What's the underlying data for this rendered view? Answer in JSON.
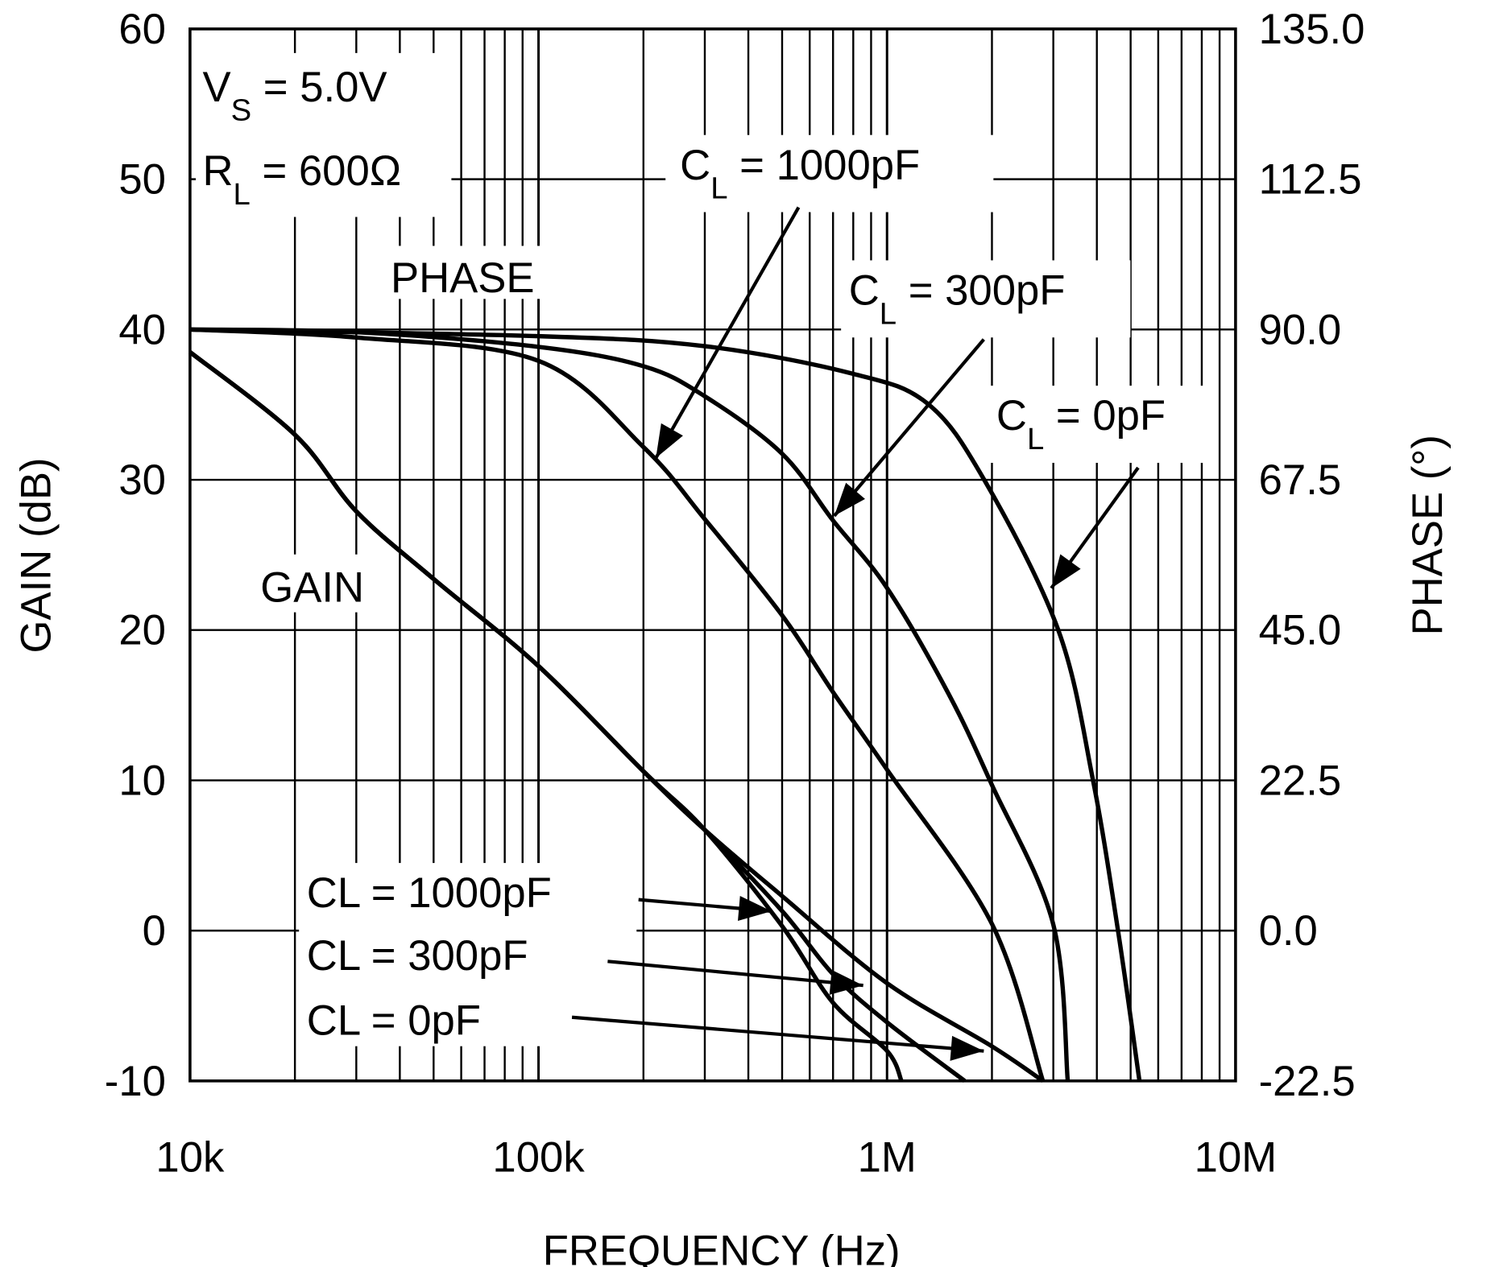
{
  "chart_data": {
    "type": "line",
    "xlabel": "FREQUENCY (Hz)",
    "ylabel": "GAIN (dB)",
    "y2label": "PHASE (°)",
    "xscale": "log",
    "xlim": [
      10000,
      10000000
    ],
    "ylim": [
      -10,
      60
    ],
    "y2lim": [
      -22.5,
      135
    ],
    "grid": true,
    "x_ticks": [
      {
        "value": 10000,
        "label": "10k"
      },
      {
        "value": 100000,
        "label": "100k"
      },
      {
        "value": 1000000,
        "label": "1M"
      },
      {
        "value": 10000000,
        "label": "10M"
      }
    ],
    "y_ticks": [
      "60",
      "50",
      "40",
      "30",
      "20",
      "10",
      "0",
      "-10"
    ],
    "y2_ticks": [
      "135.0",
      "112.5",
      "90.0",
      "67.5",
      "45.0",
      "22.5",
      "0.0",
      "-22.5"
    ],
    "conditions": {
      "vs": {
        "main": "V",
        "sub": "S",
        "rest": " = 5.0V"
      },
      "rl": {
        "main": "R",
        "sub": "L",
        "rest": " = 600Ω"
      }
    },
    "region_labels": {
      "phase": "PHASE",
      "gain": "GAIN"
    },
    "series": [
      {
        "name": "CL = 1000pF",
        "axis": "gain",
        "x": [
          10000,
          20000,
          30000,
          50000,
          100000,
          200000,
          300000,
          500000,
          700000,
          1000000,
          1100000
        ],
        "y": [
          38.5,
          33,
          27.9,
          23.4,
          17.6,
          10.6,
          6.7,
          0.3,
          -4.8,
          -8,
          -10
        ]
      },
      {
        "name": "CL = 300pF",
        "axis": "gain",
        "x": [
          10000,
          20000,
          30000,
          50000,
          100000,
          200000,
          300000,
          500000,
          700000,
          1000000,
          1670000
        ],
        "y": [
          38.5,
          33,
          27.9,
          23.4,
          17.6,
          10.6,
          6.7,
          1.3,
          -2.9,
          -6.1,
          -10
        ]
      },
      {
        "name": "CL = 0pF",
        "axis": "gain",
        "x": [
          10000,
          20000,
          30000,
          50000,
          100000,
          200000,
          300000,
          500000,
          1000000,
          2000000,
          2800000
        ],
        "y": [
          38.5,
          33,
          27.9,
          23.4,
          17.6,
          10.6,
          6.7,
          2.3,
          -3.5,
          -7.7,
          -10
        ]
      },
      {
        "name": "CL = 1000pF",
        "axis": "phase",
        "x": [
          10000,
          30000,
          100000,
          200000,
          300000,
          500000,
          700000,
          1000000,
          2000000,
          2800000
        ],
        "y": [
          90,
          88.8,
          85.3,
          72.4,
          61.6,
          47.2,
          35.7,
          24.1,
          1,
          -22.5
        ]
      },
      {
        "name": "CL = 300pF",
        "axis": "phase",
        "x": [
          10000,
          30000,
          100000,
          200000,
          300000,
          500000,
          700000,
          1000000,
          1500000,
          2000000,
          3000000,
          3300000
        ],
        "y": [
          90,
          89.6,
          87.4,
          84.5,
          80,
          71.4,
          61.4,
          51.3,
          35.5,
          21.8,
          0.9,
          -22.5
        ]
      },
      {
        "name": "CL = 0pF",
        "axis": "phase",
        "x": [
          10000,
          100000,
          300000,
          780000,
          1300000,
          1900000,
          3100000,
          3900000,
          4600000,
          5300000
        ],
        "y": [
          90,
          89,
          87.5,
          83.5,
          79,
          67.5,
          45,
          22.5,
          0,
          -22.5
        ]
      }
    ],
    "annotations": {
      "phase_1000": {
        "main": "C",
        "sub": "L",
        "rest": " = 1000pF"
      },
      "phase_300": {
        "main": "C",
        "sub": "L",
        "rest": " = 300pF"
      },
      "phase_0": {
        "main": "C",
        "sub": "L",
        "rest": " = 0pF"
      },
      "gain_1000": "CL = 1000pF",
      "gain_300": "CL = 300pF",
      "gain_0": "CL = 0pF"
    }
  }
}
